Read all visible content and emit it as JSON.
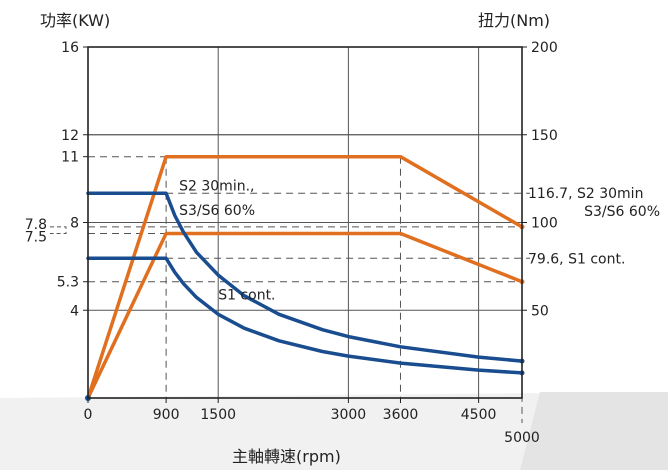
{
  "chart_data": {
    "type": "line",
    "xlabel": "主軸轉速(rpm)",
    "ylabel_left": "功率(KW)",
    "ylabel_right": "扭力(Nm)",
    "xlim": [
      0,
      5000
    ],
    "ylim_left": [
      0,
      16
    ],
    "ylim_right": [
      0,
      200
    ],
    "grid": true,
    "x_ticks": [
      {
        "value": 0,
        "label": "0"
      },
      {
        "value": 900,
        "label": "900"
      },
      {
        "value": 1500,
        "label": "1500"
      },
      {
        "value": 3000,
        "label": "3000"
      },
      {
        "value": 3600,
        "label": "3600"
      },
      {
        "value": 4500,
        "label": "4500"
      }
    ],
    "x_ticks_below": [
      {
        "value": 5000,
        "label": "5000"
      }
    ],
    "y_ticks_left": [
      {
        "value": 4,
        "label": "4"
      },
      {
        "value": 5.3,
        "label": "5.3"
      },
      {
        "value": 8,
        "label": "8"
      },
      {
        "value": 11,
        "label": "11"
      },
      {
        "value": 12,
        "label": "12"
      },
      {
        "value": 16,
        "label": "16"
      }
    ],
    "y_ticks_left_outer": [
      {
        "value": 7.8,
        "label": "7.8"
      },
      {
        "value": 7.5,
        "label": "7.5"
      }
    ],
    "y_ticks_right": [
      {
        "value": 50,
        "label": "50"
      },
      {
        "value": 100,
        "label": "100"
      },
      {
        "value": 150,
        "label": "150"
      },
      {
        "value": 200,
        "label": "200"
      }
    ],
    "right_annotations": [
      {
        "value": 116.7,
        "lines": [
          "116.7, S2  30min",
          "S3/S6 60%"
        ]
      },
      {
        "value": 79.6,
        "lines": [
          "79.6, S1 cont."
        ]
      }
    ],
    "series": [
      {
        "axis": "left",
        "color": "#e07020",
        "x": [
          0,
          900,
          3600,
          5000
        ],
        "y": [
          0,
          11,
          11,
          7.8
        ]
      },
      {
        "axis": "left",
        "color": "#e07020",
        "x": [
          0,
          900,
          3600,
          5000
        ],
        "y": [
          0,
          7.5,
          7.5,
          5.3
        ]
      },
      {
        "axis": "right",
        "color": "#1a4d8f",
        "x": [
          0,
          900,
          1000,
          1100,
          1250,
          1500,
          1800,
          2200,
          2700,
          3000,
          3600,
          4500,
          5000
        ],
        "y": [
          116.7,
          116.7,
          104,
          94.5,
          83,
          70,
          58.3,
          47.7,
          38.9,
          35,
          29.2,
          23.3,
          21
        ]
      },
      {
        "axis": "right",
        "color": "#1a4d8f",
        "x": [
          0,
          900,
          1000,
          1100,
          1250,
          1500,
          1800,
          2200,
          2700,
          3000,
          3600,
          4500,
          5000
        ],
        "y": [
          79.6,
          79.6,
          71.6,
          65.1,
          57.3,
          47.7,
          39.8,
          32.6,
          26.5,
          23.9,
          19.9,
          15.9,
          14.3
        ]
      }
    ],
    "annotations": [
      {
        "text": "S2  30min.,",
        "x": 1050,
        "y": 9.45
      },
      {
        "text": "S3/S6  60%",
        "x": 1050,
        "y": 8.35
      },
      {
        "text": "S1 cont.",
        "x": 1500,
        "y": 4.5
      }
    ]
  }
}
